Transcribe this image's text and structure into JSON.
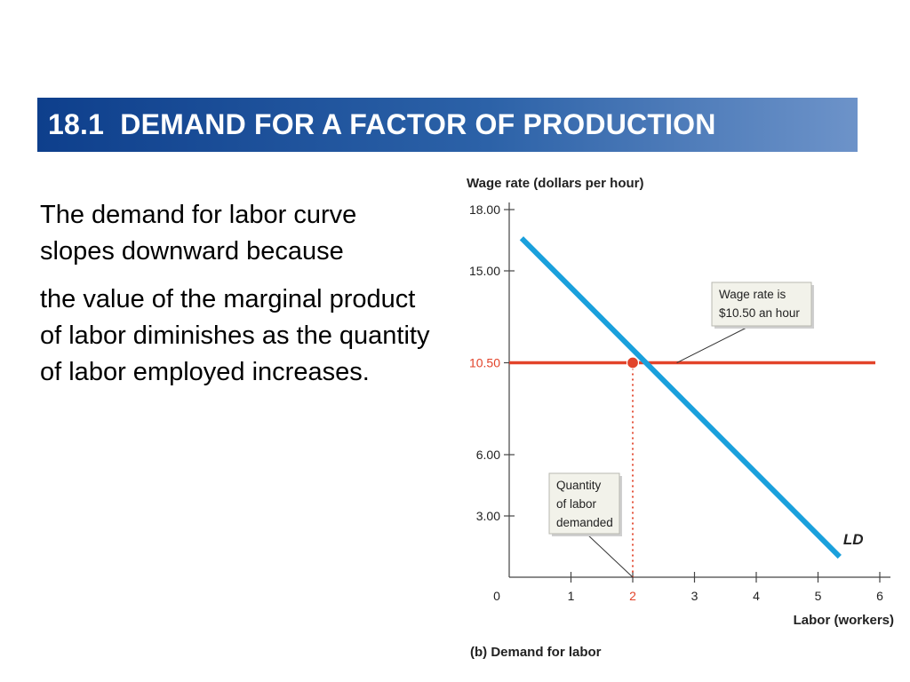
{
  "slide": {
    "title_number": "18.1",
    "title_text": "DEMAND FOR A FACTOR OF PRODUCTION",
    "paragraphs": [
      "The demand for labor curve slopes downward because",
      "the value of the marginal product of labor diminishes as the quantity of labor employed increases."
    ]
  },
  "colors": {
    "title_start": "#0e3f8c",
    "title_end": "#6d93c9",
    "demand_curve": "#1aa0dc",
    "wage_line": "#e2432a",
    "highlight_text": "#e2432a"
  },
  "chart_data": {
    "type": "line",
    "ylabel": "Wage rate (dollars per hour)",
    "xlabel": "Labor (workers)",
    "caption": "(b) Demand for labor",
    "xlim": [
      0,
      6
    ],
    "ylim": [
      0,
      18
    ],
    "x_ticks": [
      0,
      1,
      2,
      3,
      4,
      5,
      6
    ],
    "x_tick_labels": [
      "0",
      "1",
      "2",
      "3",
      "4",
      "5",
      "6"
    ],
    "y_ticks": [
      3,
      6,
      10.5,
      15,
      18
    ],
    "y_tick_labels": [
      "3.00",
      "6.00",
      "10.50",
      "15.00",
      "18.00"
    ],
    "highlight_x_tick": 2,
    "highlight_y_tick": 10.5,
    "series": [
      {
        "name": "LD",
        "points": [
          [
            0.2,
            16.6
          ],
          [
            5.35,
            1.0
          ]
        ]
      }
    ],
    "wage_line": {
      "y": 10.5,
      "x_range": [
        0,
        6
      ]
    },
    "equilibrium": {
      "x": 2,
      "y": 10.5
    },
    "annotations": [
      {
        "lines": [
          "Wage rate is",
          "$10.50 an hour"
        ],
        "target": [
          2.8,
          10.5
        ]
      },
      {
        "lines": [
          "Quantity",
          "of labor",
          "demanded"
        ],
        "target": [
          2,
          0
        ]
      }
    ],
    "grid": false
  }
}
